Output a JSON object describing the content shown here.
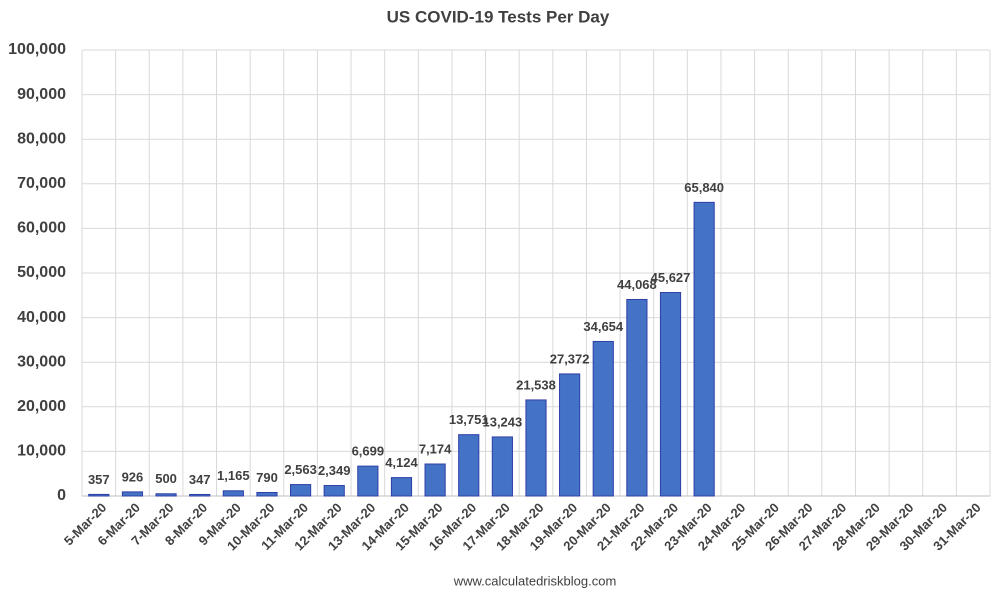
{
  "chart_data": {
    "type": "bar",
    "title": "US COVID-19 Tests Per Day",
    "source": "www.calculatedriskblog.com",
    "categories": [
      "5-Mar-20",
      "6-Mar-20",
      "7-Mar-20",
      "8-Mar-20",
      "9-Mar-20",
      "10-Mar-20",
      "11-Mar-20",
      "12-Mar-20",
      "13-Mar-20",
      "14-Mar-20",
      "15-Mar-20",
      "16-Mar-20",
      "17-Mar-20",
      "18-Mar-20",
      "19-Mar-20",
      "20-Mar-20",
      "21-Mar-20",
      "22-Mar-20",
      "23-Mar-20",
      "24-Mar-20",
      "25-Mar-20",
      "26-Mar-20",
      "27-Mar-20",
      "28-Mar-20",
      "29-Mar-20",
      "30-Mar-20",
      "31-Mar-20"
    ],
    "values": [
      357,
      926,
      500,
      347,
      1165,
      790,
      2563,
      2349,
      6699,
      4124,
      7174,
      13751,
      13243,
      21538,
      27372,
      34654,
      44068,
      45627,
      65840,
      null,
      null,
      null,
      null,
      null,
      null,
      null,
      null
    ],
    "value_labels": [
      "357",
      "926",
      "500",
      "347",
      "1,165",
      "790",
      "2,563",
      "2,349",
      "6,699",
      "4,124",
      "7,174",
      "13,751",
      "13,243",
      "21,538",
      "27,372",
      "34,654",
      "44,068",
      "45,627",
      "65,840",
      null,
      null,
      null,
      null,
      null,
      null,
      null,
      null
    ],
    "color": "#4472c4",
    "ylim": [
      0,
      100000
    ],
    "yticks": [
      0,
      {
        "value": 10000,
        "label": "10,000"
      },
      {
        "value": 20000,
        "label": "20,000"
      },
      {
        "value": 30000,
        "label": "30,000"
      },
      {
        "value": 40000,
        "label": "40,000"
      },
      {
        "value": 50000,
        "label": "50,000"
      },
      {
        "value": 60000,
        "label": "60,000"
      },
      {
        "value": 70000,
        "label": "70,000"
      },
      {
        "value": 80000,
        "label": "80,000"
      },
      {
        "value": 90000,
        "label": "90,000"
      },
      {
        "value": 100000,
        "label": "100,000"
      }
    ],
    "grid": true
  }
}
